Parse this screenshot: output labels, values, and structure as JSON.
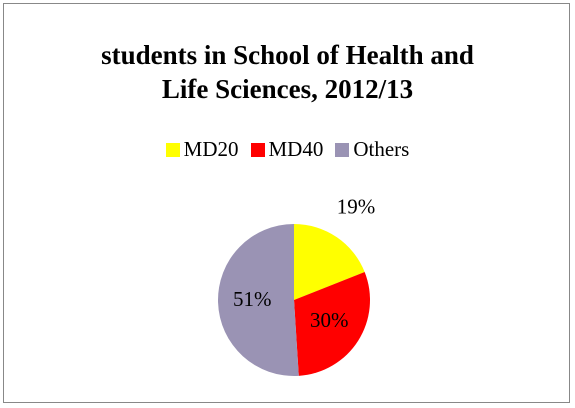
{
  "chart_data": {
    "type": "pie",
    "title": "students in School of Health and Life Sciences, 2012/13",
    "categories": [
      "MD20",
      "MD40",
      "Others"
    ],
    "values": [
      19,
      30,
      51
    ],
    "value_labels": [
      "19%",
      "30%",
      "51%"
    ],
    "colors": [
      "#ffff00",
      "#ff0000",
      "#9a93b4"
    ],
    "legend": "top"
  }
}
